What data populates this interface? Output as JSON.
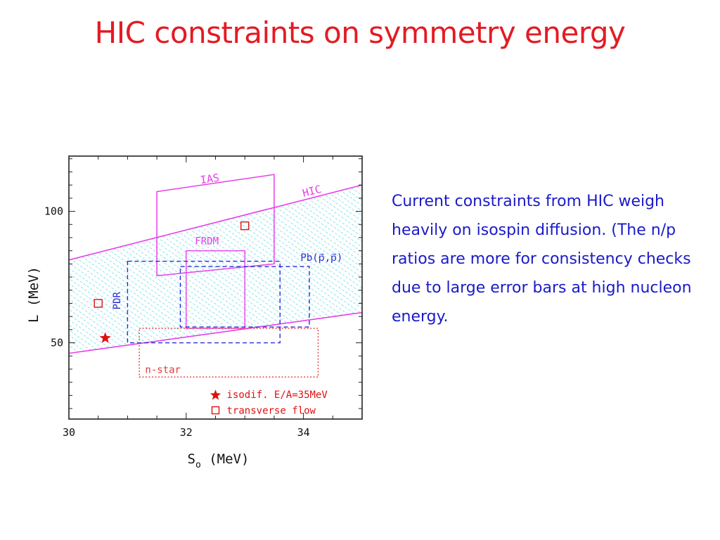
{
  "slide": {
    "title": "HIC constraints on symmetry energy",
    "body_text": "Current constraints from HIC weigh heavily on isospin diffusion. (The n/p ratios are more for consistency checks due to large error bars at high nucleon energy."
  },
  "colors": {
    "title": "#e31b23",
    "body": "#1a1ac8",
    "hic_band_edge": "#e83ee8",
    "hic_hatch": "#2fd0e0",
    "ias_box": "#e83ee8",
    "frdm_box": "#e83ee8",
    "pdr_box": "#2a2ad6",
    "pb_box": "#2a2ad6",
    "nstar_box": "#e03a3a",
    "markers": "#e01010"
  },
  "chart_data": {
    "type": "scatter",
    "xlabel": "S",
    "xlabel_sub": "o",
    "xlabel_unit": "(MeV)",
    "ylabel": "L (MeV)",
    "xlim": [
      30,
      35
    ],
    "ylim": [
      21,
      121
    ],
    "x_ticks": [
      30,
      32,
      34
    ],
    "y_ticks": [
      50,
      100
    ],
    "grid": false,
    "legend_position": "bottom-right",
    "band": {
      "name": "HIC",
      "upper": [
        [
          30,
          81.5
        ],
        [
          35,
          110
        ]
      ],
      "lower": [
        [
          30,
          46
        ],
        [
          35,
          61.5
        ]
      ]
    },
    "regions": [
      {
        "name": "IAS",
        "style": "solid",
        "color_key": "ias_box",
        "polygon": [
          [
            31.5,
            75.5
          ],
          [
            33.5,
            80
          ],
          [
            33.5,
            114
          ],
          [
            31.5,
            107.5
          ]
        ]
      },
      {
        "name": "FRDM",
        "style": "solid",
        "color_key": "frdm_box",
        "x": [
          32,
          33
        ],
        "y": [
          55.5,
          85
        ]
      },
      {
        "name": "PDR",
        "style": "dashed",
        "color_key": "pdr_box",
        "x": [
          31,
          33.6
        ],
        "y": [
          50,
          81
        ]
      },
      {
        "name": "Pb(p,p)",
        "style": "dashed",
        "color_key": "pb_box",
        "x": [
          31.9,
          34.1
        ],
        "y": [
          56,
          79
        ]
      },
      {
        "name": "n-star",
        "style": "dotted",
        "color_key": "nstar_box",
        "x": [
          31.2,
          34.25
        ],
        "y": [
          37,
          55.5
        ]
      }
    ],
    "series": [
      {
        "name": "isodif. E/A=35MeV",
        "marker": "star",
        "points": [
          [
            30.62,
            51.8
          ]
        ]
      },
      {
        "name": "transverse flow",
        "marker": "open-square",
        "points": [
          [
            30.5,
            65
          ],
          [
            33.0,
            94.5
          ]
        ]
      }
    ],
    "annotations": [
      {
        "text": "HIC"
      },
      {
        "text": "IAS"
      },
      {
        "text": "FRDM"
      },
      {
        "text": "PDR"
      },
      {
        "text": "Pb(p⃗,p⃗)"
      },
      {
        "text": "n-star"
      }
    ]
  }
}
